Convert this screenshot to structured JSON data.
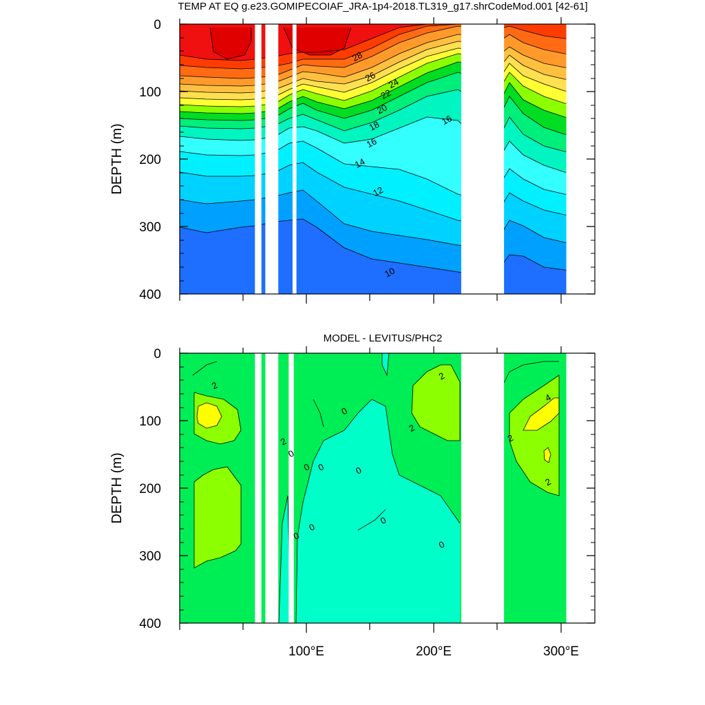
{
  "chart_data": [
    {
      "type": "heatmap",
      "subtype": "filled-contour",
      "title": "TEMP AT EQ g.e23.GOMIPECOIAF_JRA-1p4-2018.TL319_g17.shrCodeMod.001 [42-61]",
      "ylabel": "DEPTH (m)",
      "xlim": [
        0,
        320
      ],
      "ylim": [
        400,
        0
      ],
      "yticks": [
        "0",
        "100",
        "200",
        "300",
        "400"
      ],
      "xticks": [],
      "land_gaps": [
        [
          58,
          63
        ],
        [
          66,
          76
        ],
        [
          87,
          90
        ],
        [
          217,
          250
        ],
        [
          298,
          320
        ]
      ],
      "colors": [
        "#0a28ff",
        "#1e6eff",
        "#00a0ff",
        "#00d2ff",
        "#00f0ff",
        "#33ffff",
        "#00f5c0",
        "#00ee7a",
        "#00dd22",
        "#8cff00",
        "#ffff33",
        "#ffe050",
        "#ffc040",
        "#ff9a2a",
        "#ff6a12",
        "#ff3c00",
        "#f01010",
        "#e00000"
      ],
      "contour_labels": [
        {
          "text": "28",
          "lon": 138,
          "depth": 52
        },
        {
          "text": "26",
          "lon": 148,
          "depth": 82
        },
        {
          "text": "24",
          "lon": 166,
          "depth": 92
        },
        {
          "text": "22",
          "lon": 160,
          "depth": 108
        },
        {
          "text": "20",
          "lon": 157,
          "depth": 130
        },
        {
          "text": "18",
          "lon": 151,
          "depth": 155
        },
        {
          "text": "16",
          "lon": 149,
          "depth": 180
        },
        {
          "text": "16",
          "lon": 207,
          "depth": 146
        },
        {
          "text": "14",
          "lon": 140,
          "depth": 210
        },
        {
          "text": "12",
          "lon": 154,
          "depth": 252
        },
        {
          "text": "10",
          "lon": 163,
          "depth": 372
        }
      ]
    },
    {
      "type": "heatmap",
      "subtype": "filled-contour",
      "title": "MODEL - LEVITUS/PHC2",
      "ylabel": "DEPTH (m)",
      "xlim": [
        0,
        320
      ],
      "ylim": [
        400,
        0
      ],
      "yticks": [
        "0",
        "100",
        "200",
        "300",
        "400"
      ],
      "xticks": [
        "100°E",
        "200°E",
        "300°E"
      ],
      "land_gaps": [
        [
          58,
          63
        ],
        [
          66,
          76
        ],
        [
          84,
          88
        ],
        [
          217,
          250
        ],
        [
          298,
          320
        ]
      ],
      "colors": [
        "#00ffc8",
        "#00ee55",
        "#8cff00",
        "#ffff00"
      ],
      "contour_labels": [
        {
          "text": "2",
          "lon": 28,
          "depth": 52
        },
        {
          "text": "0",
          "lon": 128,
          "depth": 90
        },
        {
          "text": "2",
          "lon": 81,
          "depth": 135
        },
        {
          "text": "0",
          "lon": 87,
          "depth": 153
        },
        {
          "text": "0",
          "lon": 99,
          "depth": 173
        },
        {
          "text": "0",
          "lon": 110,
          "depth": 173
        },
        {
          "text": "0",
          "lon": 139,
          "depth": 178
        },
        {
          "text": "2",
          "lon": 180,
          "depth": 115
        },
        {
          "text": "2",
          "lon": 203,
          "depth": 38
        },
        {
          "text": "2",
          "lon": 256,
          "depth": 130
        },
        {
          "text": "4",
          "lon": 285,
          "depth": 70
        },
        {
          "text": "2",
          "lon": 285,
          "depth": 195
        },
        {
          "text": "0",
          "lon": 103,
          "depth": 262
        },
        {
          "text": "0",
          "lon": 158,
          "depth": 252
        },
        {
          "text": "0",
          "lon": 91,
          "depth": 275
        },
        {
          "text": "0",
          "lon": 203,
          "depth": 288
        }
      ]
    }
  ]
}
